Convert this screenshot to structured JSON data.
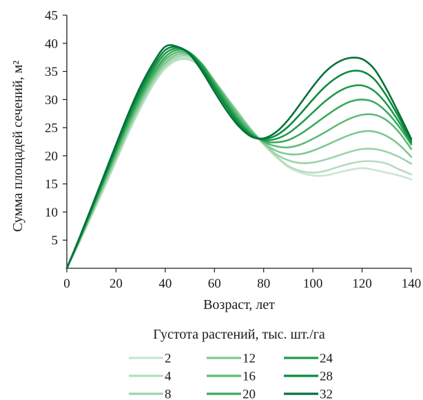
{
  "chart_data": {
    "type": "line",
    "title": "",
    "xlabel": "Возраст, лет",
    "ylabel": "Сумма площадей сечений, м²",
    "xlim": [
      0,
      140
    ],
    "ylim": [
      0,
      45
    ],
    "x_ticks": [
      0,
      20,
      40,
      60,
      80,
      100,
      120,
      140
    ],
    "y_ticks": [
      5,
      10,
      15,
      20,
      25,
      30,
      35,
      40,
      45
    ],
    "grid": false,
    "legend_title": "Густота растений, тыс. шт./га",
    "legend_position": "bottom",
    "x": [
      0,
      5,
      10,
      15,
      20,
      25,
      30,
      35,
      40,
      45,
      50,
      55,
      60,
      65,
      70,
      75,
      80,
      85,
      90,
      95,
      100,
      105,
      110,
      115,
      120,
      125,
      130,
      135,
      140
    ],
    "series": [
      {
        "name": "2",
        "color": "#c8e6cf",
        "values": [
          0,
          4.5,
          9.2,
          14,
          19,
          24,
          28.5,
          32.5,
          35.5,
          37,
          37,
          35.5,
          33,
          30.3,
          27.5,
          24.5,
          22,
          19.8,
          18,
          17,
          16.5,
          16.5,
          17,
          17.5,
          17.8,
          17.5,
          17,
          16.5,
          15.8
        ]
      },
      {
        "name": "4",
        "color": "#b4ddbe",
        "values": [
          0,
          4.6,
          9.4,
          14.3,
          19.3,
          24.3,
          28.8,
          32.8,
          35.8,
          37.2,
          37.2,
          35.7,
          33.2,
          30.4,
          27.5,
          24.6,
          22.1,
          20,
          18.2,
          17.3,
          17,
          17.3,
          18,
          18.6,
          19,
          19,
          18.6,
          17.6,
          16.7
        ]
      },
      {
        "name": "8",
        "color": "#9dd3aa",
        "values": [
          0,
          4.7,
          9.6,
          14.6,
          19.6,
          24.6,
          29.2,
          33.2,
          36.2,
          37.6,
          37.6,
          36,
          33.3,
          30.4,
          27.4,
          24.6,
          22.2,
          20.3,
          19.2,
          18.7,
          18.8,
          19.3,
          20,
          20.7,
          21.2,
          21.2,
          20.7,
          19.8,
          18.6
        ]
      },
      {
        "name": "12",
        "color": "#7fc891",
        "values": [
          0,
          4.8,
          9.8,
          14.9,
          20,
          25,
          29.6,
          33.6,
          36.6,
          38,
          37.9,
          36.2,
          33.3,
          30.2,
          27.2,
          24.5,
          22.3,
          20.9,
          20.3,
          20.3,
          20.9,
          21.8,
          22.8,
          23.7,
          24.3,
          24.3,
          23.5,
          22,
          19.8
        ]
      },
      {
        "name": "16",
        "color": "#5fba76",
        "values": [
          0,
          4.9,
          10,
          15.2,
          20.4,
          25.5,
          30.1,
          34.1,
          37.1,
          38.4,
          38.1,
          36.3,
          33.2,
          30,
          26.9,
          24.3,
          22.5,
          21.7,
          21.5,
          22,
          23,
          24.2,
          25.5,
          26.6,
          27.3,
          27.3,
          26.3,
          24.2,
          21.2
        ]
      },
      {
        "name": "20",
        "color": "#3aaa5d",
        "values": [
          0,
          5,
          10.2,
          15.5,
          20.8,
          26,
          30.6,
          34.6,
          37.6,
          38.8,
          38.3,
          36.2,
          32.9,
          29.6,
          26.4,
          24,
          22.6,
          22.4,
          22.8,
          23.9,
          25.4,
          27,
          28.5,
          29.6,
          30,
          29.5,
          27.8,
          25.2,
          22
        ]
      },
      {
        "name": "24",
        "color": "#1e9a4a",
        "values": [
          0,
          5.1,
          10.4,
          15.8,
          21.2,
          26.5,
          31.2,
          35.2,
          38.2,
          39.1,
          38.3,
          35.9,
          32.5,
          29.1,
          26,
          23.7,
          22.8,
          23,
          24,
          25.7,
          27.7,
          29.7,
          31.3,
          32.3,
          32.5,
          31.5,
          29.2,
          26,
          22.3
        ]
      },
      {
        "name": "28",
        "color": "#0b8a3d",
        "values": [
          0,
          5.2,
          10.6,
          16.1,
          21.6,
          27,
          31.8,
          35.8,
          38.8,
          39.3,
          38.2,
          35.5,
          32,
          28.6,
          25.6,
          23.6,
          23,
          23.6,
          25.2,
          27.5,
          30,
          32.3,
          34,
          35,
          35,
          33.6,
          30.6,
          26.8,
          22.6
        ]
      },
      {
        "name": "32",
        "color": "#03703a",
        "values": [
          0,
          5.3,
          10.8,
          16.4,
          22,
          27.5,
          32.4,
          36.4,
          39.4,
          39.4,
          38,
          35,
          31.4,
          28,
          25.2,
          23.4,
          23.1,
          24.2,
          26.4,
          29.3,
          32.3,
          34.9,
          36.6,
          37.4,
          37.2,
          35.4,
          31.8,
          27.5,
          23
        ]
      }
    ]
  }
}
